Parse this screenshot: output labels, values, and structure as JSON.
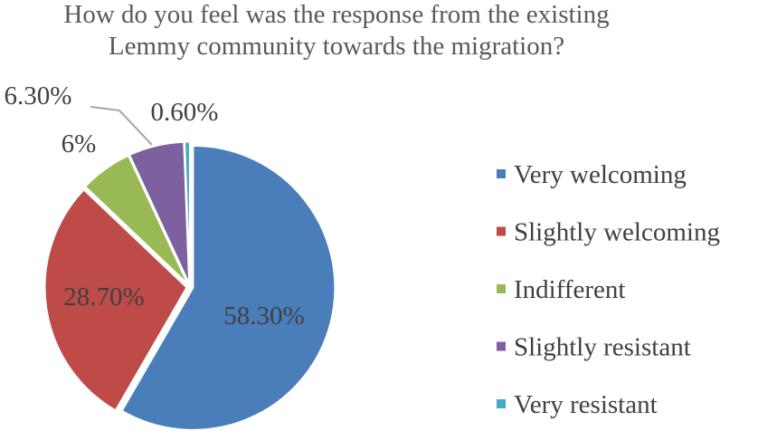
{
  "chart_data": {
    "type": "pie",
    "title": "How do you feel was the response from the existing Lemmy community towards the migration?",
    "title_lines": [
      "How do you feel was the response from the existing",
      "Lemmy community towards the migration?"
    ],
    "slices": [
      {
        "label": "Very welcoming",
        "value": 58.3,
        "display": "58.30%",
        "color": "#4a7ebb"
      },
      {
        "label": "Slightly welcoming",
        "value": 28.7,
        "display": "28.70%",
        "color": "#be4b48"
      },
      {
        "label": "Indifferent",
        "value": 6.0,
        "display": "6%",
        "color": "#98b954"
      },
      {
        "label": "Slightly resistant",
        "value": 6.3,
        "display": "6.30%",
        "color": "#7d60a0"
      },
      {
        "label": "Very resistant",
        "value": 0.6,
        "display": "0.60%",
        "color": "#46aac5"
      }
    ],
    "legend": {
      "position": "right"
    }
  }
}
